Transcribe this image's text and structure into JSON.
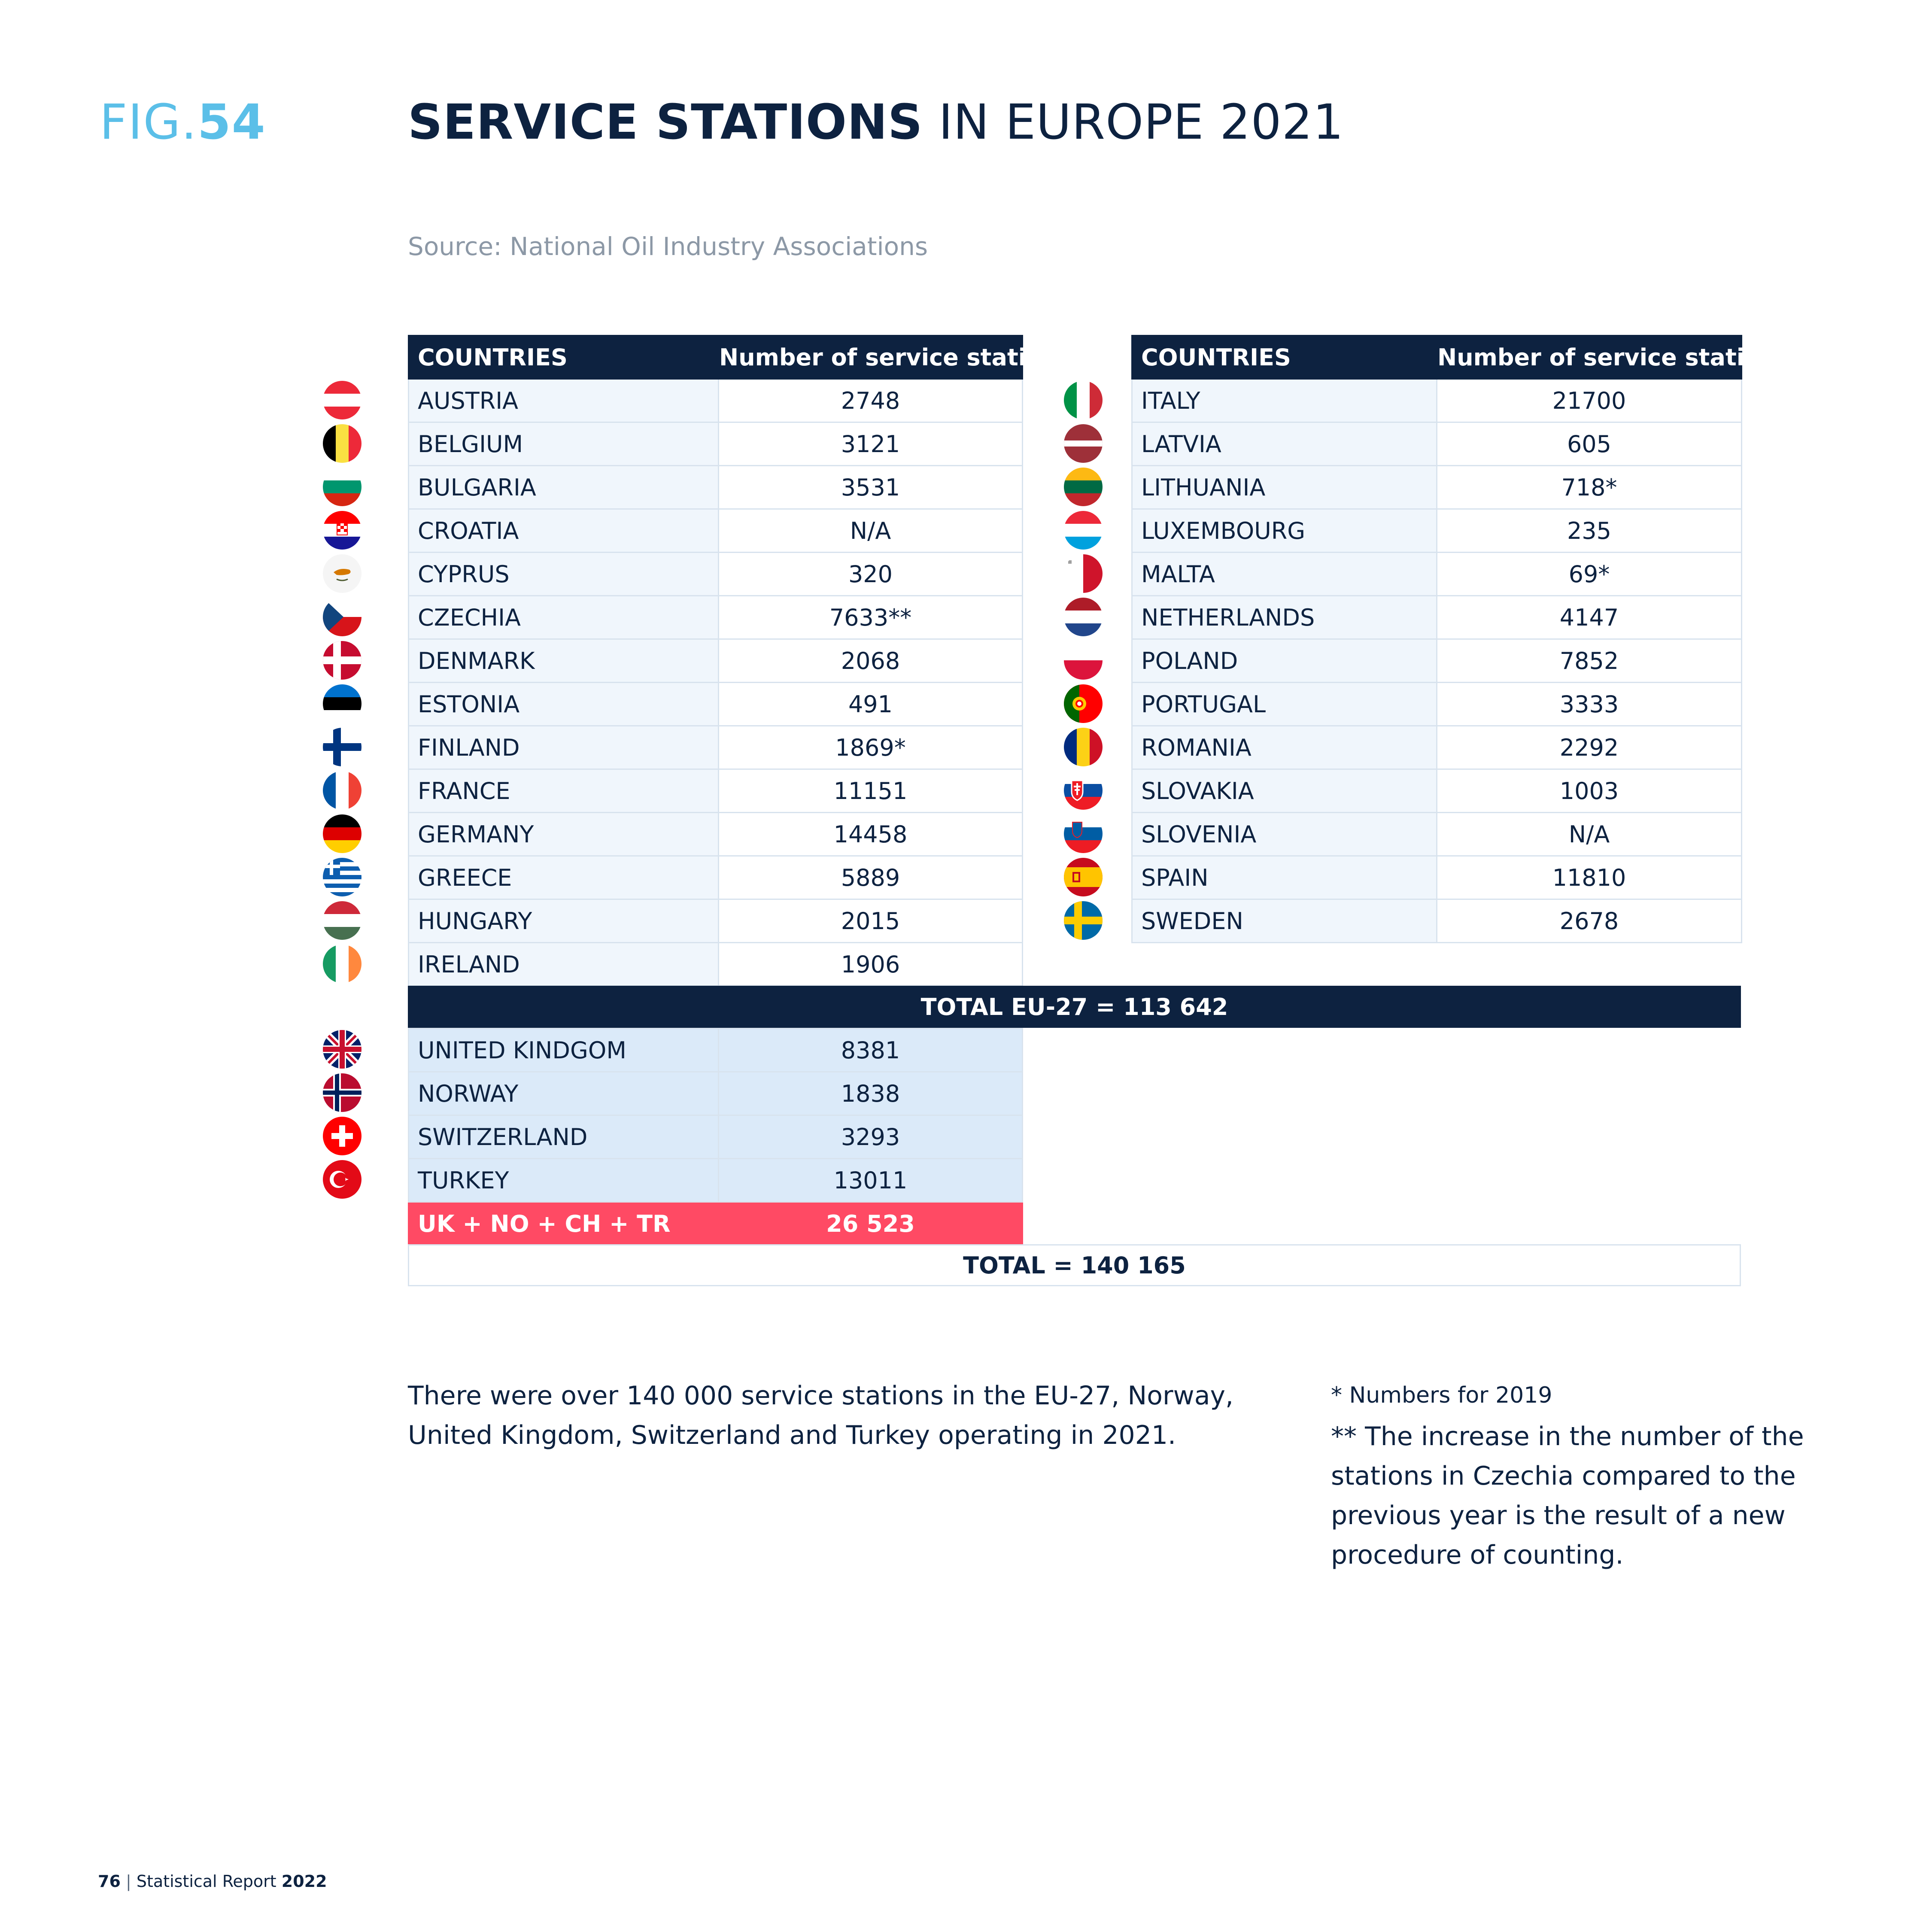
{
  "header": {
    "fig_prefix": "FIG.",
    "fig_number": "54",
    "title_bold": "SERVICE STATIONS",
    "title_rest": " IN EUROPE 2021",
    "source": "Source: National Oil Industry Associations"
  },
  "table_headers": {
    "countries": "COUNTRIES",
    "stations": "Number of service stations"
  },
  "eu_left": [
    {
      "country": "AUSTRIA",
      "value": "2748",
      "flag": "austria-flag-icon"
    },
    {
      "country": "BELGIUM",
      "value": "3121",
      "flag": "belgium-flag-icon"
    },
    {
      "country": "BULGARIA",
      "value": "3531",
      "flag": "bulgaria-flag-icon"
    },
    {
      "country": "CROATIA",
      "value": "N/A",
      "flag": "croatia-flag-icon"
    },
    {
      "country": "CYPRUS",
      "value": "320",
      "flag": "cyprus-flag-icon"
    },
    {
      "country": "CZECHIA",
      "value": "7633**",
      "flag": "czechia-flag-icon"
    },
    {
      "country": "DENMARK",
      "value": "2068",
      "flag": "denmark-flag-icon"
    },
    {
      "country": "ESTONIA",
      "value": "491",
      "flag": "estonia-flag-icon"
    },
    {
      "country": "FINLAND",
      "value": "1869*",
      "flag": "finland-flag-icon"
    },
    {
      "country": "FRANCE",
      "value": "11151",
      "flag": "france-flag-icon"
    },
    {
      "country": "GERMANY",
      "value": "14458",
      "flag": "germany-flag-icon"
    },
    {
      "country": "GREECE",
      "value": "5889",
      "flag": "greece-flag-icon"
    },
    {
      "country": "HUNGARY",
      "value": "2015",
      "flag": "hungary-flag-icon"
    },
    {
      "country": "IRELAND",
      "value": "1906",
      "flag": "ireland-flag-icon"
    }
  ],
  "eu_right": [
    {
      "country": "ITALY",
      "value": "21700",
      "flag": "italy-flag-icon"
    },
    {
      "country": "LATVIA",
      "value": "605",
      "flag": "latvia-flag-icon"
    },
    {
      "country": "LITHUANIA",
      "value": "718*",
      "flag": "lithuania-flag-icon"
    },
    {
      "country": "LUXEMBOURG",
      "value": "235",
      "flag": "luxembourg-flag-icon"
    },
    {
      "country": "MALTA",
      "value": "69*",
      "flag": "malta-flag-icon"
    },
    {
      "country": "NETHERLANDS",
      "value": "4147",
      "flag": "netherlands-flag-icon"
    },
    {
      "country": "POLAND",
      "value": "7852",
      "flag": "poland-flag-icon"
    },
    {
      "country": "PORTUGAL",
      "value": "3333",
      "flag": "portugal-flag-icon"
    },
    {
      "country": "ROMANIA",
      "value": "2292",
      "flag": "romania-flag-icon"
    },
    {
      "country": "SLOVAKIA",
      "value": "1003",
      "flag": "slovakia-flag-icon"
    },
    {
      "country": "SLOVENIA",
      "value": "N/A",
      "flag": "slovenia-flag-icon"
    },
    {
      "country": "SPAIN",
      "value": "11810",
      "flag": "spain-flag-icon"
    },
    {
      "country": "SWEDEN",
      "value": "2678",
      "flag": "sweden-flag-icon"
    }
  ],
  "eu_total": "TOTAL EU-27 = 113 642",
  "non_eu": [
    {
      "country": "UNITED KINDGOM",
      "value": "8381",
      "flag": "united-kingdom-flag-icon"
    },
    {
      "country": "NORWAY",
      "value": "1838",
      "flag": "norway-flag-icon"
    },
    {
      "country": "SWITZERLAND",
      "value": "3293",
      "flag": "switzerland-flag-icon"
    },
    {
      "country": "TURKEY",
      "value": "13011",
      "flag": "turkey-flag-icon"
    }
  ],
  "non_eu_subtotal": {
    "label": "UK + NO + CH + TR",
    "value": "26 523"
  },
  "grand_total": "TOTAL = 140 165",
  "body_text": "There were over 140 000 service stations in the EU-27, Norway, United Kingdom, Switzerland and Turkey operating in 2021.",
  "notes": {
    "note1": "* Numbers for 2019",
    "note2": "** The increase in the number of the stations in Czechia compared to the previous year is the result of a new procedure of counting."
  },
  "footer": {
    "page": "76",
    "separator": " | ",
    "report": "Statistical Report ",
    "year": "2022"
  },
  "colors": {
    "navy": "#0d2240",
    "light_blue": "#5bbfe8",
    "red_subtotal": "#ff4a64",
    "pale_blue": "#dbeaf9"
  }
}
